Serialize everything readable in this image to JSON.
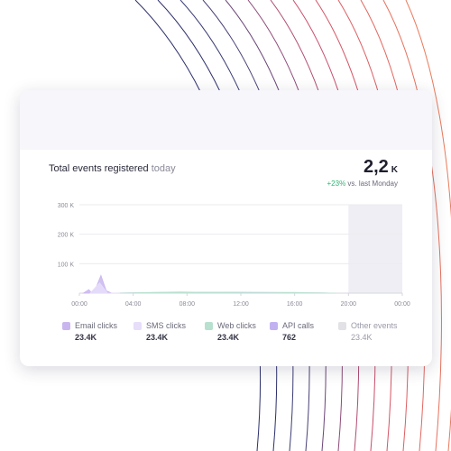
{
  "widget": {
    "title": "Total events registered",
    "title_suffix": "today",
    "kpi_value": "2,2",
    "kpi_unit": "K",
    "delta": "+23%",
    "delta_suffix": "vs. last Monday"
  },
  "legend": [
    {
      "label": "Email clicks",
      "value": "23.4K",
      "color": "#c9b6ee"
    },
    {
      "label": "SMS clicks",
      "value": "23.4K",
      "color": "#e7defa"
    },
    {
      "label": "Web clicks",
      "value": "23.4K",
      "color": "#b8e0cf"
    },
    {
      "label": "API calls",
      "value": "762",
      "color": "#c2b1f1"
    },
    {
      "label": "Other events",
      "value": "23.4K",
      "color": "#e2e2e6"
    }
  ],
  "chart_data": {
    "type": "area",
    "x": [
      "00:00",
      "04:00",
      "08:00",
      "12:00",
      "16:00",
      "20:00",
      "00:00"
    ],
    "y_ticks": [
      "300 K",
      "200 K",
      "100 K"
    ],
    "ylim": [
      0,
      300000
    ],
    "series": [
      {
        "name": "Email clicks",
        "color": "#c9b6ee",
        "points": [
          [
            0.3,
            0
          ],
          [
            0.7,
            12000
          ],
          [
            0.9,
            2000
          ],
          [
            1.2,
            15000
          ],
          [
            1.6,
            60000
          ],
          [
            2.0,
            8000
          ],
          [
            2.4,
            0
          ],
          [
            6,
            2000
          ],
          [
            8,
            3000
          ],
          [
            12,
            3000
          ],
          [
            16,
            2000
          ],
          [
            19,
            0
          ]
        ]
      },
      {
        "name": "SMS clicks",
        "color": "#e7defa",
        "points": [
          [
            0.8,
            0
          ],
          [
            1.5,
            35000
          ],
          [
            2.1,
            0
          ],
          [
            9,
            2000
          ],
          [
            13,
            1000
          ],
          [
            17,
            2000
          ],
          [
            19,
            0
          ]
        ]
      },
      {
        "name": "Web clicks",
        "color": "#b8e0cf",
        "points": [
          [
            3,
            0
          ],
          [
            5,
            2000
          ],
          [
            7.5,
            4000
          ],
          [
            10,
            2000
          ],
          [
            14,
            1000
          ],
          [
            16,
            2000
          ],
          [
            19,
            0
          ]
        ]
      }
    ],
    "highlight_from": 20,
    "highlight_to": 24
  }
}
